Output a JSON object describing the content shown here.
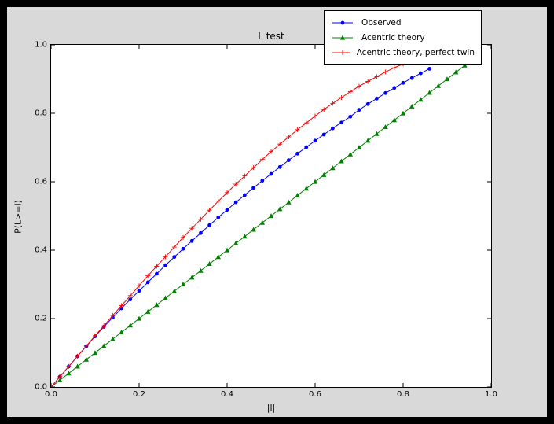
{
  "colors": {
    "outer_bg": "#000000",
    "figure_bg": "#d9d9d9",
    "plot_bg": "#ffffff",
    "axis": "#000000",
    "observed": "#0000ff",
    "acentric_theory": "#008000",
    "perfect_twin": "#ff0000"
  },
  "chart_data": {
    "type": "line",
    "title": "L test",
    "xlabel": "|l|",
    "ylabel": "P(L>=l)",
    "xlim": [
      0,
      1
    ],
    "ylim": [
      0,
      1
    ],
    "grid": false,
    "legend_position": "top-right",
    "xticks": [
      "0.0",
      "0.2",
      "0.4",
      "0.6",
      "0.8",
      "1.0"
    ],
    "yticks": [
      "0.0",
      "0.2",
      "0.4",
      "0.6",
      "0.8",
      "1.0"
    ],
    "series": [
      {
        "name": "Observed",
        "color": "#0000ff",
        "marker": "circle",
        "x": [
          0,
          0.02,
          0.04,
          0.06,
          0.08,
          0.1,
          0.12,
          0.14,
          0.16,
          0.18,
          0.2,
          0.22,
          0.24,
          0.26,
          0.28,
          0.3,
          0.32,
          0.34,
          0.36,
          0.38,
          0.4,
          0.42,
          0.44,
          0.46,
          0.48,
          0.5,
          0.52,
          0.54,
          0.56,
          0.58,
          0.6,
          0.62,
          0.64,
          0.66,
          0.68,
          0.7,
          0.72,
          0.74,
          0.76,
          0.78,
          0.8,
          0.82,
          0.84,
          0.86
        ],
        "y": [
          0.0,
          0.03,
          0.06,
          0.09,
          0.119,
          0.148,
          0.176,
          0.203,
          0.23,
          0.256,
          0.281,
          0.306,
          0.331,
          0.356,
          0.38,
          0.404,
          0.427,
          0.45,
          0.473,
          0.496,
          0.518,
          0.54,
          0.561,
          0.582,
          0.603,
          0.623,
          0.643,
          0.663,
          0.682,
          0.701,
          0.72,
          0.738,
          0.756,
          0.773,
          0.79,
          0.81,
          0.827,
          0.843,
          0.859,
          0.874,
          0.889,
          0.903,
          0.917,
          0.93
        ]
      },
      {
        "name": "Acentric theory",
        "color": "#008000",
        "marker": "triangle",
        "x": [
          0,
          0.02,
          0.04,
          0.06,
          0.08,
          0.1,
          0.12,
          0.14,
          0.16,
          0.18,
          0.2,
          0.22,
          0.24,
          0.26,
          0.28,
          0.3,
          0.32,
          0.34,
          0.36,
          0.38,
          0.4,
          0.42,
          0.44,
          0.46,
          0.48,
          0.5,
          0.52,
          0.54,
          0.56,
          0.58,
          0.6,
          0.62,
          0.64,
          0.66,
          0.68,
          0.7,
          0.72,
          0.74,
          0.76,
          0.78,
          0.8,
          0.82,
          0.84,
          0.86,
          0.88,
          0.9,
          0.92,
          0.94,
          0.96
        ],
        "y": [
          0,
          0.02,
          0.04,
          0.06,
          0.08,
          0.1,
          0.12,
          0.14,
          0.16,
          0.18,
          0.2,
          0.22,
          0.24,
          0.26,
          0.28,
          0.3,
          0.32,
          0.34,
          0.36,
          0.38,
          0.4,
          0.42,
          0.44,
          0.46,
          0.48,
          0.5,
          0.52,
          0.54,
          0.56,
          0.58,
          0.6,
          0.62,
          0.64,
          0.66,
          0.68,
          0.7,
          0.72,
          0.74,
          0.76,
          0.78,
          0.8,
          0.82,
          0.84,
          0.86,
          0.88,
          0.9,
          0.92,
          0.94,
          0.96
        ]
      },
      {
        "name": "Acentric theory, perfect twin",
        "color": "#ff0000",
        "marker": "plus",
        "x": [
          0,
          0.02,
          0.04,
          0.06,
          0.08,
          0.1,
          0.12,
          0.14,
          0.16,
          0.18,
          0.2,
          0.22,
          0.24,
          0.26,
          0.28,
          0.3,
          0.32,
          0.34,
          0.36,
          0.38,
          0.4,
          0.42,
          0.44,
          0.46,
          0.48,
          0.5,
          0.52,
          0.54,
          0.56,
          0.58,
          0.6,
          0.62,
          0.64,
          0.66,
          0.68,
          0.7,
          0.72,
          0.74,
          0.76,
          0.78,
          0.8,
          0.82,
          0.84,
          0.86
        ],
        "y": [
          0.0,
          0.03,
          0.06,
          0.09,
          0.12,
          0.15,
          0.179,
          0.209,
          0.238,
          0.267,
          0.296,
          0.325,
          0.353,
          0.381,
          0.409,
          0.437,
          0.464,
          0.49,
          0.517,
          0.543,
          0.568,
          0.593,
          0.617,
          0.641,
          0.665,
          0.688,
          0.71,
          0.731,
          0.752,
          0.772,
          0.792,
          0.811,
          0.829,
          0.846,
          0.863,
          0.879,
          0.893,
          0.907,
          0.921,
          0.933,
          0.944,
          0.954,
          0.964,
          0.972
        ]
      }
    ]
  }
}
